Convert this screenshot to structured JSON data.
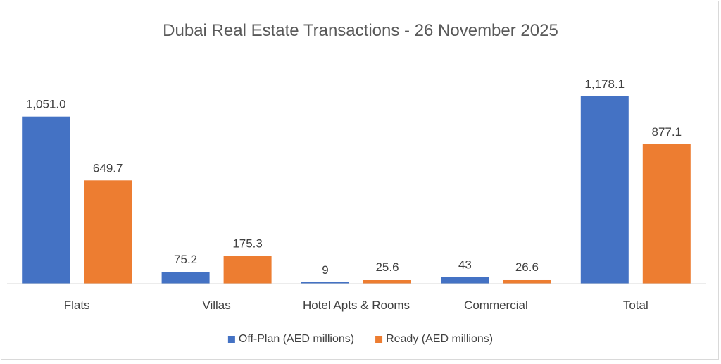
{
  "chart_data": {
    "type": "bar",
    "title": "Dubai Real Estate Transactions - 26 November 2025",
    "categories": [
      "Flats",
      "Villas",
      "Hotel Apts & Rooms",
      "Commercial",
      "Total"
    ],
    "series": [
      {
        "name": "Off-Plan (AED millions)",
        "color": "#4472c4",
        "values": [
          1051.0,
          75.2,
          9,
          43,
          1178.1
        ],
        "labels": [
          "1,051.0",
          "75.2",
          "9",
          "43",
          "1,178.1"
        ]
      },
      {
        "name": "Ready (AED millions)",
        "color": "#ed7d31",
        "values": [
          649.7,
          175.3,
          25.6,
          26.6,
          877.1
        ],
        "labels": [
          "649.7",
          "175.3",
          "25.6",
          "26.6",
          "877.1"
        ]
      }
    ],
    "ylim": [
      0,
      1178.1
    ],
    "grid": false,
    "legend_position": "bottom"
  }
}
